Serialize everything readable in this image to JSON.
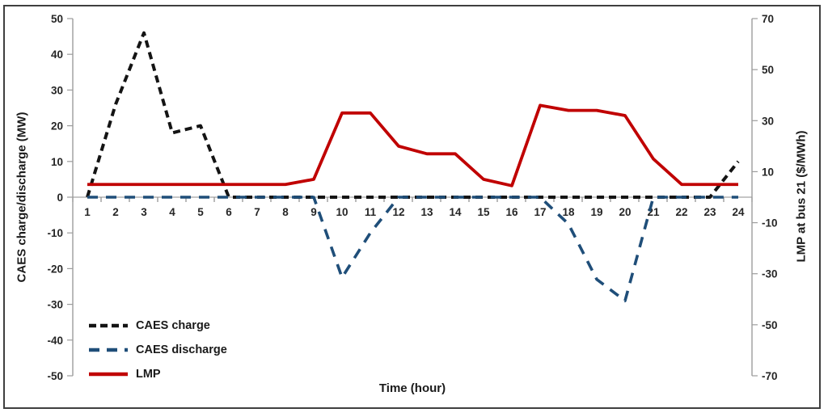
{
  "chart_data": {
    "type": "line",
    "title": "",
    "xlabel": "Time (hour)",
    "x": [
      1,
      2,
      3,
      4,
      5,
      6,
      7,
      8,
      9,
      10,
      11,
      12,
      13,
      14,
      15,
      16,
      17,
      18,
      19,
      20,
      21,
      22,
      23,
      24
    ],
    "left_axis": {
      "label": "CAES charge/discharge (MW)",
      "min": -50,
      "max": 50,
      "ticks": [
        50,
        40,
        30,
        20,
        10,
        0,
        -10,
        -20,
        -30,
        -40,
        -50
      ]
    },
    "right_axis": {
      "label": "LMP at bus 21 ($/MWh)",
      "min": -70,
      "max": 70,
      "ticks": [
        70,
        50,
        30,
        10,
        -10,
        -30,
        -50,
        -70
      ]
    },
    "grid": "off",
    "legend_position": "bottom-left",
    "series": [
      {
        "name": "CAES charge",
        "axis": "left",
        "color": "#141414",
        "line_style": "dashed",
        "dash": "9 6",
        "width": 4,
        "values": [
          0,
          26,
          46,
          18,
          20,
          0,
          0,
          0,
          0,
          0,
          0,
          0,
          0,
          0,
          0,
          0,
          0,
          0,
          0,
          0,
          0,
          0,
          0,
          10
        ]
      },
      {
        "name": "CAES discharge",
        "axis": "left",
        "color": "#1f4e79",
        "line_style": "dashed",
        "dash": "13 10",
        "width": 3.6,
        "values": [
          0,
          0,
          0,
          0,
          0,
          0,
          0,
          0,
          0,
          -22.5,
          -10,
          0,
          0,
          0,
          0,
          0,
          0,
          -7.5,
          -23,
          -29,
          0,
          0,
          0,
          0
        ]
      },
      {
        "name": "LMP",
        "axis": "right",
        "color": "#c00000",
        "line_style": "solid",
        "dash": "",
        "width": 3.8,
        "values": [
          5,
          5,
          5,
          5,
          5,
          5,
          5,
          5,
          7,
          33,
          33,
          20,
          17,
          17,
          7,
          4.5,
          36,
          34,
          34,
          32,
          15,
          5,
          5,
          5
        ]
      }
    ]
  }
}
